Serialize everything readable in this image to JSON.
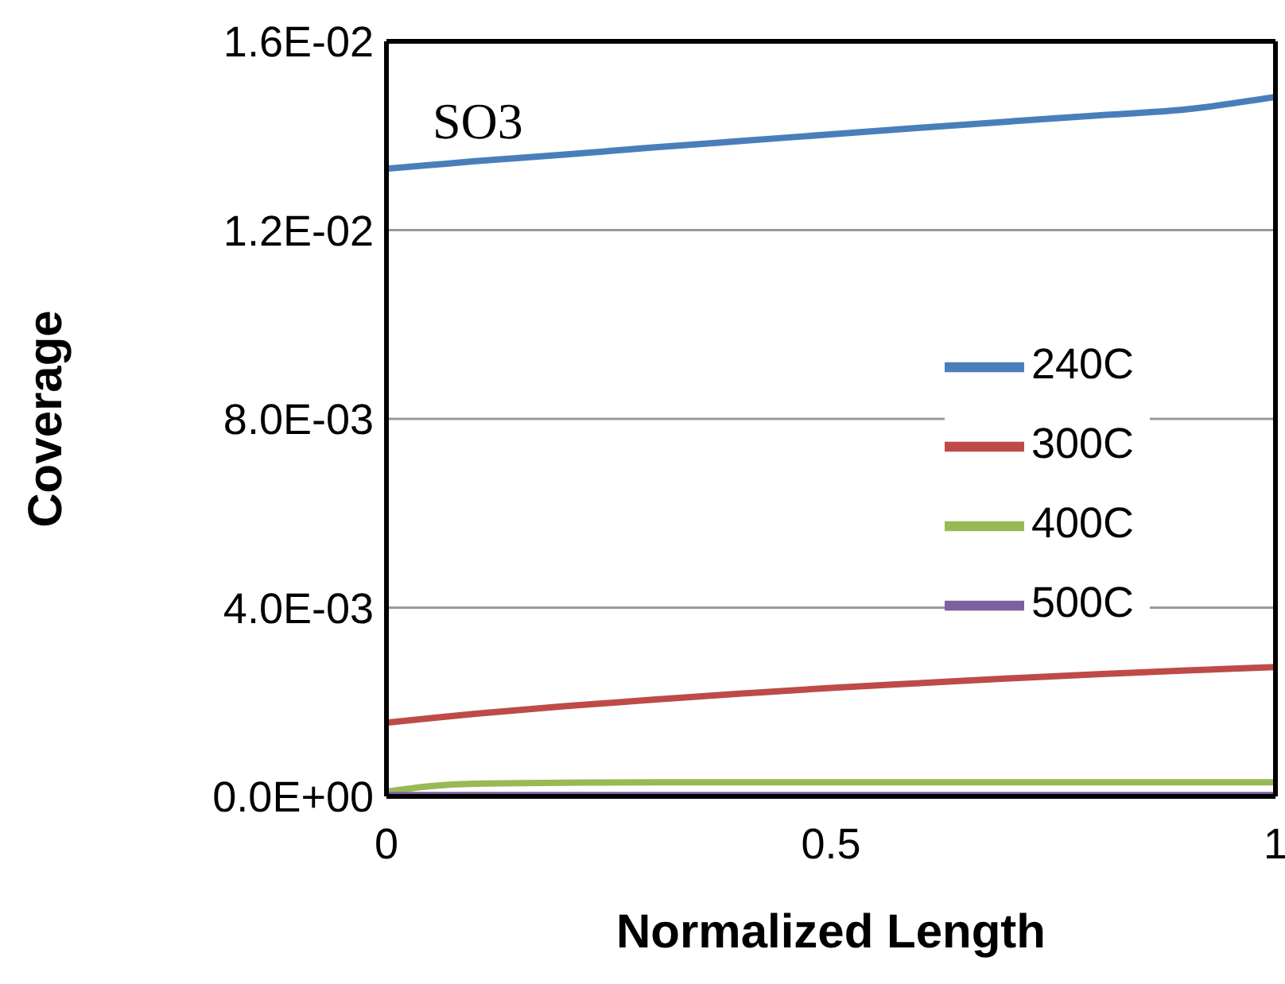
{
  "chart_data": {
    "type": "line",
    "xlabel": "Normalized Length",
    "ylabel": "Coverage",
    "annotations": [
      "SO3"
    ],
    "x": [
      0,
      0.05,
      0.1,
      0.2,
      0.3,
      0.4,
      0.5,
      0.6,
      0.7,
      0.8,
      0.9,
      1
    ],
    "series": [
      {
        "name": "240C",
        "color": "#4a7ebb",
        "values": [
          0.0133,
          0.01338,
          0.01346,
          0.0136,
          0.01375,
          0.01389,
          0.01403,
          0.01417,
          0.0143,
          0.01443,
          0.01456,
          0.01482
        ]
      },
      {
        "name": "300C",
        "color": "#be4b48",
        "values": [
          0.00156,
          0.00166,
          0.00175,
          0.00191,
          0.00205,
          0.00218,
          0.0023,
          0.0024,
          0.0025,
          0.00259,
          0.00267,
          0.00274
        ]
      },
      {
        "name": "400C",
        "color": "#98b954",
        "values": [
          0.0001,
          0.00022,
          0.00027,
          0.00029,
          0.0003,
          0.0003,
          0.0003,
          0.0003,
          0.0003,
          0.0003,
          0.0003,
          0.0003
        ]
      },
      {
        "name": "500C",
        "color": "#7d60a0",
        "values": [
          3e-05,
          3e-05,
          3e-05,
          3e-05,
          3e-05,
          3e-05,
          3e-05,
          3e-05,
          3e-05,
          3e-05,
          3e-05,
          3e-05
        ]
      }
    ],
    "xlim": [
      0,
      1
    ],
    "xticks": [
      0,
      0.5,
      1
    ],
    "ylim": [
      0,
      0.016
    ],
    "yticks": [
      {
        "value": 0,
        "label": "0.0E+00"
      },
      {
        "value": 0.004,
        "label": "4.0E-03"
      },
      {
        "value": 0.008,
        "label": "8.0E-03"
      },
      {
        "value": 0.012,
        "label": "1.2E-02"
      },
      {
        "value": 0.016,
        "label": "1.6E-02"
      }
    ],
    "grid": "y",
    "legend": "right",
    "marker": "none",
    "line_style": "solid"
  }
}
